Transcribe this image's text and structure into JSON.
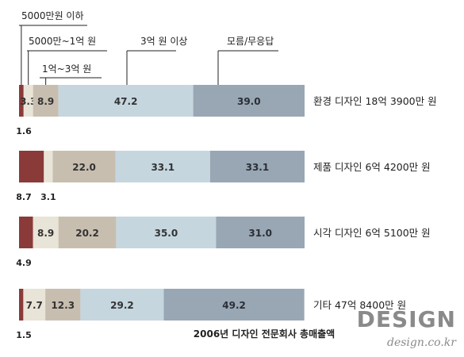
{
  "chart_data": {
    "type": "bar",
    "orientation": "horizontal",
    "stacked": true,
    "caption": "2006년 디자인 전문회사 총매출액",
    "legend": [
      "5000만원 이하",
      "5000만~1억 원",
      "1억~3억 원",
      "3억 원 이상",
      "모름/무응답"
    ],
    "categories": [
      "환경 디자인 18억 3900만 원",
      "제품 디자인 6억 4200만 원",
      "시각 디자인 6억 5100만 원",
      "기타 47억 8400만 원"
    ],
    "series": [
      {
        "name": "5000만원 이하",
        "color": "#8b3a3a",
        "values": [
          1.6,
          8.7,
          4.9,
          1.5
        ]
      },
      {
        "name": "5000만~1억 원",
        "color": "#e9e4d8",
        "values": [
          3.3,
          3.1,
          8.9,
          7.7
        ]
      },
      {
        "name": "1억~3억 원",
        "color": "#c8beb0",
        "values": [
          8.9,
          22.0,
          20.2,
          12.3
        ]
      },
      {
        "name": "3억 원 이상",
        "color": "#c5d6df",
        "values": [
          47.2,
          33.1,
          35.0,
          29.2
        ]
      },
      {
        "name": "모름/무응답",
        "color": "#98a7b3",
        "values": [
          39.0,
          33.1,
          31.0,
          49.2
        ]
      }
    ],
    "value_labels": [
      [
        "1.6",
        "3.3",
        "8.9",
        "47.2",
        "39.0"
      ],
      [
        "8.7",
        "3.1",
        "22.0",
        "33.1",
        "33.1"
      ],
      [
        "4.9",
        "8.9",
        "20.2",
        "35.0",
        "31.0"
      ],
      [
        "1.5",
        "7.7",
        "12.3",
        "29.2",
        "49.2"
      ]
    ]
  },
  "brand": {
    "name": "DESIGN",
    "site": "design.co.kr"
  }
}
